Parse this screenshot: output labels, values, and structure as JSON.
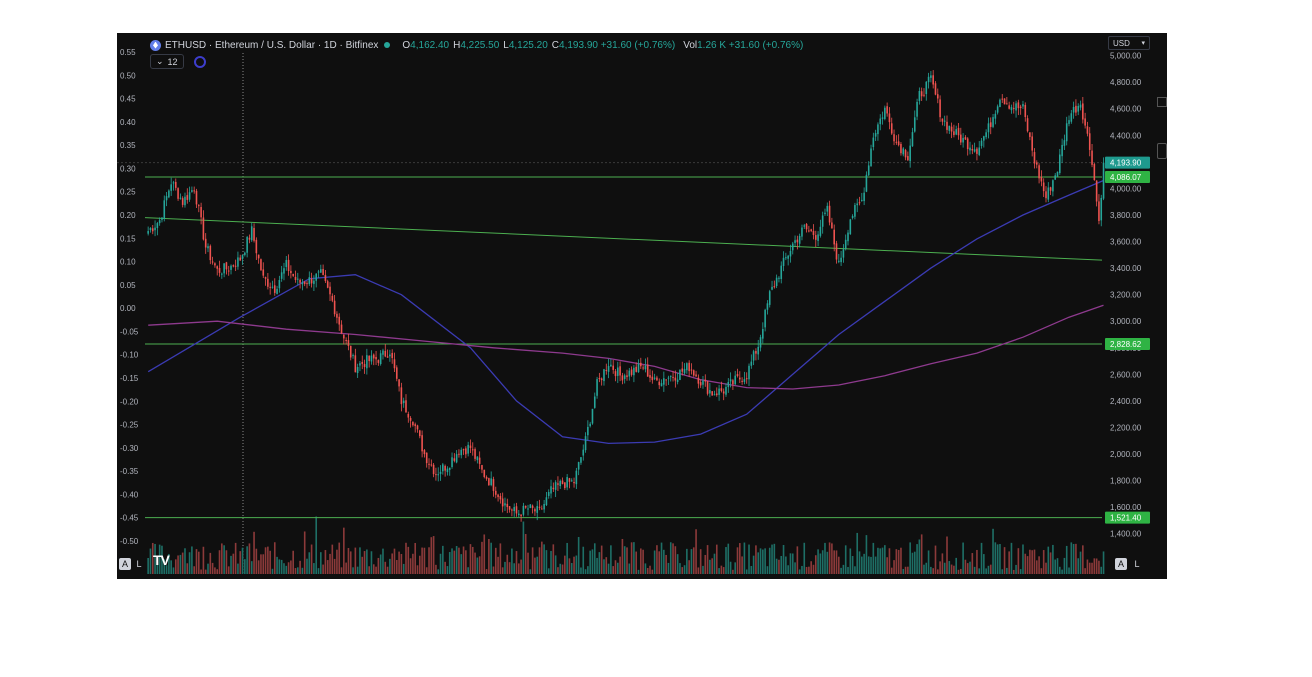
{
  "header": {
    "symbol_title": "ETHUSD · Ethereum / U.S. Dollar · 1D · Bitfinex",
    "o_label": "O",
    "o_value": "4,162.40",
    "h_label": "H",
    "h_value": "4,225.50",
    "l_label": "L",
    "l_value": "4,125.20",
    "c_label": "C",
    "c_value": "4,193.90 +31.60 (+0.76%)",
    "vol_label": "Vol",
    "vol_value": "1.26 K +31.60 (+0.76%)"
  },
  "indicator": {
    "count": "12"
  },
  "currency_select": "USD",
  "buttons": {
    "auto": "A",
    "log": "L"
  },
  "logo": "TV",
  "colors": {
    "background": "#0f0f0f",
    "up": "#26a69a",
    "down": "#ef5350",
    "level_line": "#4caf50",
    "ma_fast": "#3b3bb3",
    "ma_slow": "#8e3a8e",
    "text": "#d1d4dc"
  },
  "chart_data": {
    "type": "candlestick",
    "right_axis": {
      "ticks": [
        "5,000.00",
        "4,800.00",
        "4,600.00",
        "4,400.00",
        "4,200.00",
        "4,000.00",
        "3,800.00",
        "3,600.00",
        "3,400.00",
        "3,200.00",
        "3,000.00",
        "2,800.00",
        "2,600.00",
        "2,400.00",
        "2,200.00",
        "2,000.00",
        "1,800.00",
        "1,600.00",
        "1,400.00"
      ],
      "range": [
        1330,
        5080
      ]
    },
    "left_axis": {
      "ticks": [
        "0.55",
        "0.50",
        "0.45",
        "0.40",
        "0.35",
        "0.30",
        "0.25",
        "0.20",
        "0.15",
        "0.10",
        "0.05",
        "0.00",
        "-0.05",
        "-0.10",
        "-0.15",
        "-0.20",
        "-0.25",
        "-0.30",
        "-0.35",
        "-0.40",
        "-0.45",
        "-0.50"
      ]
    },
    "price_labels": [
      {
        "value": 4193.9,
        "text": "4,193.90",
        "kind": "last"
      },
      {
        "value": 4086.07,
        "text": "4,086.07",
        "kind": "level"
      },
      {
        "value": 2828.62,
        "text": "2,828.62",
        "kind": "level"
      },
      {
        "value": 1521.4,
        "text": "1,521.40",
        "kind": "level"
      }
    ],
    "horizontal_levels": [
      4086.07,
      2828.62,
      1521.4
    ],
    "trendline": {
      "start": 3780,
      "end": 3460
    },
    "anchor_closes": [
      [
        0,
        3680
      ],
      [
        5,
        3760
      ],
      [
        10,
        4050
      ],
      [
        15,
        3900
      ],
      [
        20,
        4010
      ],
      [
        25,
        3560
      ],
      [
        30,
        3380
      ],
      [
        35,
        3400
      ],
      [
        40,
        3470
      ],
      [
        45,
        3680
      ],
      [
        50,
        3320
      ],
      [
        55,
        3250
      ],
      [
        60,
        3420
      ],
      [
        65,
        3290
      ],
      [
        70,
        3310
      ],
      [
        75,
        3350
      ],
      [
        80,
        3150
      ],
      [
        85,
        2880
      ],
      [
        90,
        2660
      ],
      [
        95,
        2700
      ],
      [
        100,
        2720
      ],
      [
        105,
        2780
      ],
      [
        110,
        2400
      ],
      [
        115,
        2260
      ],
      [
        120,
        2000
      ],
      [
        125,
        1860
      ],
      [
        130,
        1920
      ],
      [
        135,
        2030
      ],
      [
        140,
        2050
      ],
      [
        145,
        1870
      ],
      [
        150,
        1760
      ],
      [
        155,
        1620
      ],
      [
        160,
        1550
      ],
      [
        165,
        1590
      ],
      [
        170,
        1560
      ],
      [
        175,
        1720
      ],
      [
        180,
        1780
      ],
      [
        185,
        1790
      ],
      [
        190,
        2100
      ],
      [
        195,
        2520
      ],
      [
        200,
        2690
      ],
      [
        205,
        2590
      ],
      [
        210,
        2620
      ],
      [
        215,
        2660
      ],
      [
        220,
        2540
      ],
      [
        225,
        2580
      ],
      [
        230,
        2600
      ],
      [
        235,
        2660
      ],
      [
        240,
        2550
      ],
      [
        245,
        2460
      ],
      [
        250,
        2480
      ],
      [
        255,
        2550
      ],
      [
        260,
        2600
      ],
      [
        265,
        2820
      ],
      [
        270,
        3200
      ],
      [
        275,
        3400
      ],
      [
        280,
        3580
      ],
      [
        285,
        3700
      ],
      [
        290,
        3650
      ],
      [
        295,
        3830
      ],
      [
        300,
        3420
      ],
      [
        305,
        3780
      ],
      [
        310,
        3910
      ],
      [
        315,
        4400
      ],
      [
        320,
        4600
      ],
      [
        325,
        4350
      ],
      [
        330,
        4250
      ],
      [
        335,
        4700
      ],
      [
        340,
        4820
      ],
      [
        345,
        4520
      ],
      [
        350,
        4420
      ],
      [
        355,
        4350
      ],
      [
        360,
        4300
      ],
      [
        365,
        4450
      ],
      [
        370,
        4700
      ],
      [
        375,
        4620
      ],
      [
        380,
        4600
      ],
      [
        385,
        4210
      ],
      [
        390,
        3930
      ],
      [
        395,
        4150
      ],
      [
        400,
        4550
      ],
      [
        405,
        4650
      ],
      [
        410,
        4220
      ],
      [
        413,
        3750
      ],
      [
        415,
        4193.9
      ]
    ],
    "moving_averages": [
      {
        "color": "ma_fast",
        "points": [
          [
            0,
            2620
          ],
          [
            40,
            3030
          ],
          [
            70,
            3320
          ],
          [
            90,
            3350
          ],
          [
            110,
            3200
          ],
          [
            140,
            2800
          ],
          [
            160,
            2400
          ],
          [
            180,
            2130
          ],
          [
            200,
            2080
          ],
          [
            220,
            2090
          ],
          [
            240,
            2150
          ],
          [
            260,
            2300
          ],
          [
            280,
            2600
          ],
          [
            300,
            2900
          ],
          [
            320,
            3150
          ],
          [
            340,
            3400
          ],
          [
            360,
            3620
          ],
          [
            380,
            3800
          ],
          [
            400,
            3950
          ],
          [
            415,
            4060
          ]
        ]
      },
      {
        "color": "ma_slow",
        "points": [
          [
            0,
            2970
          ],
          [
            30,
            3000
          ],
          [
            60,
            2940
          ],
          [
            90,
            2900
          ],
          [
            120,
            2850
          ],
          [
            150,
            2800
          ],
          [
            180,
            2760
          ],
          [
            200,
            2720
          ],
          [
            220,
            2660
          ],
          [
            240,
            2560
          ],
          [
            260,
            2500
          ],
          [
            280,
            2490
          ],
          [
            300,
            2520
          ],
          [
            320,
            2590
          ],
          [
            340,
            2680
          ],
          [
            360,
            2760
          ],
          [
            380,
            2880
          ],
          [
            400,
            3030
          ],
          [
            415,
            3120
          ]
        ]
      }
    ],
    "volume_spikes": [
      [
        73,
        230
      ],
      [
        110,
        80
      ],
      [
        148,
        140
      ],
      [
        163,
        210
      ],
      [
        164,
        160
      ],
      [
        347,
        150
      ],
      [
        370,
        120
      ],
      [
        417,
        200
      ]
    ]
  }
}
